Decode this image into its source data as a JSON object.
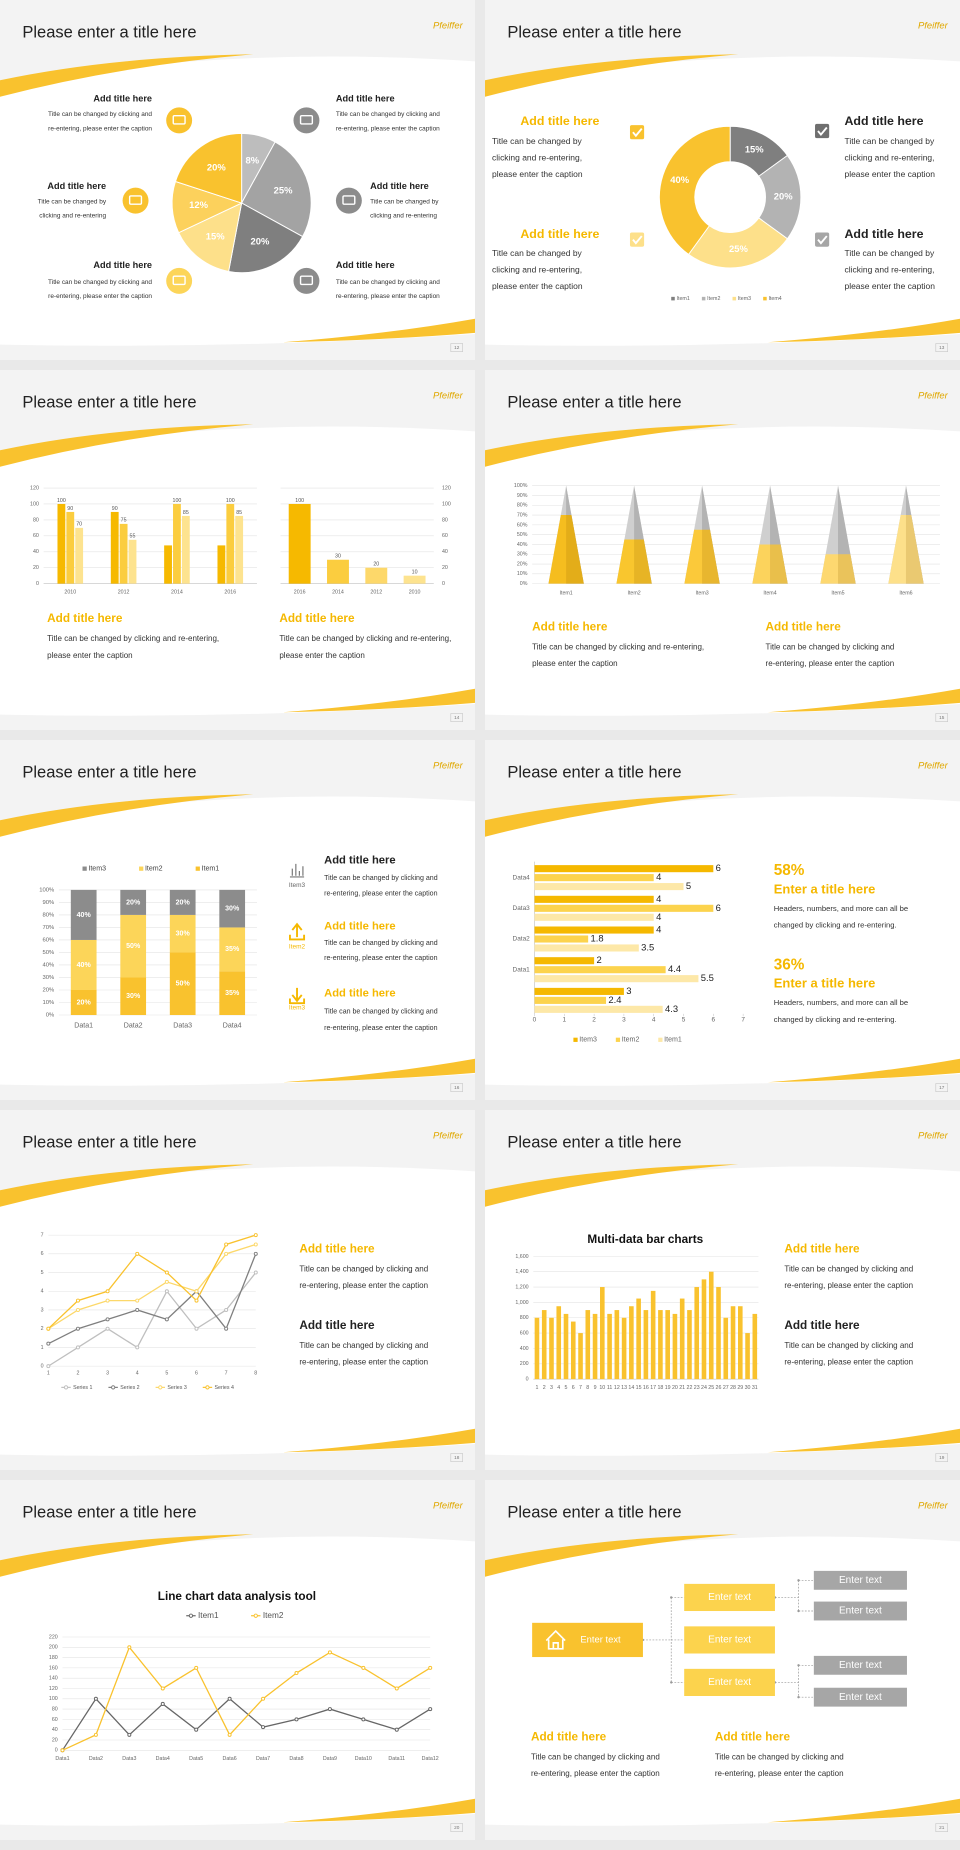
{
  "slides": [
    {
      "title": "Please enter a title here",
      "logo": "Pfeiffer",
      "page": 12,
      "blocks": [
        {
          "heading": "Add title here",
          "lines": [
            "Title can be changed by clicking and",
            "re-entering, please enter the caption"
          ]
        },
        {
          "heading": "Add title here",
          "lines": [
            "Title can be changed by clicking and",
            "re-entering, please enter the caption"
          ]
        },
        {
          "heading": "Add title here",
          "lines": [
            "Title can be changed by",
            "clicking and re-entering"
          ]
        },
        {
          "heading": "Add title here",
          "lines": [
            "Title can be changed by",
            "clicking and re-entering"
          ]
        },
        {
          "heading": "Add title here",
          "lines": [
            "Title can be changed by clicking and",
            "re-entering, please enter the caption"
          ]
        },
        {
          "heading": "Add title here",
          "lines": [
            "Title can be changed by clicking and",
            "re-entering, please enter the caption"
          ]
        }
      ],
      "chart_data": {
        "type": "pie",
        "values": [
          8,
          25,
          20,
          15,
          12,
          20
        ],
        "value_labels": [
          "8%",
          "25%",
          "20%",
          "15%",
          "12%",
          "20%"
        ],
        "colors": [
          "#bdbdbd",
          "#a3a3a3",
          "#7f7f7f",
          "#fde08a",
          "#fcd15c",
          "#f9c22e"
        ]
      }
    },
    {
      "title": "Please enter a title here",
      "logo": "Pfeiffer",
      "page": 13,
      "blocks": [
        {
          "heading": "Add title here",
          "lines": [
            "Title can be changed by",
            "clicking and re-entering,",
            "please enter the caption"
          ]
        },
        {
          "heading": "Add title here",
          "lines": [
            "Title can be changed by",
            "clicking and re-entering,",
            "please enter the caption"
          ]
        },
        {
          "heading": "Add title here",
          "lines": [
            "Title can be changed by",
            "clicking and re-entering,",
            "please enter the caption"
          ]
        },
        {
          "heading": "Add title here",
          "lines": [
            "Title can be changed by",
            "clicking and re-entering,",
            "please enter the caption"
          ]
        }
      ],
      "chart_data": {
        "type": "donut",
        "values": [
          15,
          20,
          25,
          40
        ],
        "value_labels": [
          "15%",
          "20%",
          "25%",
          "40%"
        ],
        "labels": [
          "Item1",
          "Item2",
          "Item3",
          "Item4"
        ],
        "colors": [
          "#7f7f7f",
          "#b3b3b3",
          "#fde08a",
          "#f9c22e"
        ]
      }
    },
    {
      "title": "Please enter a title here",
      "logo": "Pfeiffer",
      "page": 14,
      "blocks": [
        {
          "heading": "Add title here",
          "lines": [
            "Title can be changed by clicking and re-entering,",
            "please enter the caption"
          ]
        },
        {
          "heading": "Add title here",
          "lines": [
            "Title can be changed by clicking and re-entering,",
            "please enter the caption"
          ]
        }
      ],
      "chart_data": [
        {
          "type": "bar",
          "categories": [
            "2010",
            "2012",
            "2014",
            "2016"
          ],
          "ylim": [
            0,
            120
          ],
          "yticks": [
            0,
            20,
            40,
            60,
            80,
            100,
            120
          ],
          "series": [
            {
              "color": "#f6b900",
              "values": [
                100,
                90,
                48,
                48
              ],
              "value_labels": [
                "100",
                "90",
                null,
                null
              ]
            },
            {
              "color": "#fbcd3f",
              "values": [
                90,
                75,
                100,
                100
              ]
            },
            {
              "color": "#fde38f",
              "values": [
                70,
                55,
                85,
                85
              ]
            }
          ]
        },
        {
          "type": "bar",
          "categories": [
            "2016",
            "2014",
            "2012",
            "2010"
          ],
          "ylim": [
            0,
            120
          ],
          "yticks": [
            0,
            20,
            40,
            60,
            80,
            100,
            120
          ],
          "y_axis_side": "right",
          "series": [
            {
              "colors": [
                "#f6b900",
                "#fbcd3f",
                "#fdd86a",
                "#fde38f"
              ],
              "values": [
                100,
                30,
                20,
                10
              ]
            }
          ]
        }
      ]
    },
    {
      "title": "Please enter a title here",
      "logo": "Pfeiffer",
      "page": 15,
      "blocks": [
        {
          "heading": "Add title here",
          "lines": [
            "Title can be changed by clicking and re-entering,",
            "please enter the caption"
          ]
        },
        {
          "heading": "Add title here",
          "lines": [
            "Title can be changed by clicking and",
            "re-entering, please enter the caption"
          ]
        }
      ],
      "chart_data": {
        "type": "cone",
        "categories": [
          "Item1",
          "Item2",
          "Item3",
          "Item4",
          "Item5",
          "Item6"
        ],
        "values": [
          70,
          45,
          55,
          40,
          30,
          70
        ],
        "colors": [
          "#f5bd1f",
          "#f9c62e",
          "#fbc93a",
          "#fcd35c",
          "#fdd870",
          "#fde08a"
        ],
        "ylim": [
          0,
          100
        ],
        "yticks": [
          {
            "value": 0,
            "label": "0%"
          },
          {
            "value": 10,
            "label": "10%"
          },
          {
            "value": 20,
            "label": "20%"
          },
          {
            "value": 30,
            "label": "30%"
          },
          {
            "value": 40,
            "label": "40%"
          },
          {
            "value": 50,
            "label": "50%"
          },
          {
            "value": 60,
            "label": "60%"
          },
          {
            "value": 70,
            "label": "70%"
          },
          {
            "value": 80,
            "label": "80%"
          },
          {
            "value": 90,
            "label": "90%"
          },
          {
            "value": 100,
            "label": "100%"
          }
        ]
      }
    },
    {
      "title": "Please enter a title here",
      "logo": "Pfeiffer",
      "page": 16,
      "blocks": [
        {
          "heading": "Add title here",
          "lines": [
            "Title can be changed by clicking and",
            "re-entering, please enter the caption"
          ]
        },
        {
          "heading": "Add title here",
          "lines": [
            "Title can be changed by clicking and",
            "re-entering, please enter the caption"
          ]
        },
        {
          "heading": "Add title here",
          "lines": [
            "Title can be changed by clicking and",
            "re-entering, please enter the caption"
          ]
        }
      ],
      "icon_labels": [
        "Item3",
        "Item2",
        "Item3"
      ],
      "chart_data": {
        "type": "stacked_bar",
        "categories": [
          "Data1",
          "Data2",
          "Data3",
          "Data4"
        ],
        "ylim": [
          0,
          100
        ],
        "yticks": [
          {
            "value": 0,
            "label": "0%"
          },
          {
            "value": 10,
            "label": "10%"
          },
          {
            "value": 20,
            "label": "20%"
          },
          {
            "value": 30,
            "label": "30%"
          },
          {
            "value": 40,
            "label": "40%"
          },
          {
            "value": 50,
            "label": "50%"
          },
          {
            "value": 60,
            "label": "60%"
          },
          {
            "value": 70,
            "label": "70%"
          },
          {
            "value": 80,
            "label": "80%"
          },
          {
            "value": 90,
            "label": "90%"
          },
          {
            "value": 100,
            "label": "100%"
          }
        ],
        "series": [
          {
            "name": "Item1",
            "color": "#f9c22e",
            "values": [
              20,
              30,
              50,
              35
            ],
            "value_labels": [
              "20%",
              "30%",
              "50%",
              "35%"
            ]
          },
          {
            "name": "Item2",
            "color": "#fcd559",
            "values": [
              40,
              50,
              30,
              35
            ],
            "value_labels": [
              "40%",
              "50%",
              "30%",
              "35%"
            ]
          },
          {
            "name": "Item3",
            "color": "#8c8c8c",
            "values": [
              40,
              20,
              20,
              30
            ],
            "value_labels": [
              "40%",
              "20%",
              "20%",
              "30%"
            ]
          }
        ]
      }
    },
    {
      "title": "Please enter a title here",
      "logo": "Pfeiffer",
      "page": 17,
      "blocks": [
        {
          "figure": "58%",
          "heading": "Enter a title here",
          "lines": [
            "Headers, numbers, and more can all be",
            "changed by clicking and re-entering."
          ]
        },
        {
          "figure": "36%",
          "heading": "Enter a title here",
          "lines": [
            "Headers, numbers, and more can all be",
            "changed by clicking and re-entering."
          ]
        }
      ],
      "chart_data": {
        "type": "hbar",
        "categories": [
          "Data4",
          "Data3",
          "Data2",
          "Data1",
          null
        ],
        "xlim": [
          0,
          7
        ],
        "xticks": [
          0,
          1,
          2,
          3,
          4,
          5,
          6,
          7
        ],
        "series": [
          {
            "name": "Item3",
            "color": "#f5b800",
            "values": [
              6,
              4,
              4,
              2,
              3
            ]
          },
          {
            "name": "Item2",
            "color": "#fcd34d",
            "values": [
              4,
              6,
              1.8,
              4.4,
              2.4
            ]
          },
          {
            "name": "Item1",
            "color": "#fde8a8",
            "values": [
              5,
              4,
              3.5,
              5.5,
              4.3
            ]
          }
        ]
      }
    },
    {
      "title": "Please enter a title here",
      "logo": "Pfeiffer",
      "page": 18,
      "blocks": [
        {
          "heading": "Add title here",
          "lines": [
            "Title can be changed by clicking and",
            "re-entering, please enter the caption"
          ]
        },
        {
          "heading": "Add title here",
          "lines": [
            "Title can be changed by clicking and",
            "re-entering, please enter the caption"
          ]
        }
      ],
      "chart_data": {
        "type": "line",
        "x": [
          1,
          2,
          3,
          4,
          5,
          6,
          7,
          8
        ],
        "xlim": [
          1,
          8
        ],
        "xticks": [
          1,
          2,
          3,
          4,
          5,
          6,
          7,
          8
        ],
        "ylim": [
          0,
          7
        ],
        "yticks": [
          0,
          1,
          2,
          3,
          4,
          5,
          6,
          7
        ],
        "series": [
          {
            "name": "Series 1",
            "color": "#bfbfbf",
            "values": [
              0,
              1,
              2,
              1,
              4,
              2,
              3,
              5
            ]
          },
          {
            "name": "Series 2",
            "color": "#7f7f7f",
            "values": [
              1.2,
              2,
              2.5,
              3,
              2.5,
              4,
              2,
              6
            ]
          },
          {
            "name": "Series 3",
            "color": "#fcd86a",
            "values": [
              2,
              3,
              3.5,
              3.5,
              4.5,
              4,
              6,
              6.5
            ]
          },
          {
            "name": "Series 4",
            "color": "#f9c22e",
            "values": [
              2,
              3.5,
              4,
              6,
              5,
              3.5,
              6.5,
              7
            ]
          }
        ]
      }
    },
    {
      "title": "Please enter a title here",
      "logo": "Pfeiffer",
      "page": 19,
      "blocks": [
        {
          "heading": "Add title here",
          "lines": [
            "Title can be changed by clicking and",
            "re-entering, please enter the caption"
          ]
        },
        {
          "heading": "Add title here",
          "lines": [
            "Title can be changed by clicking and",
            "re-entering, please enter the caption"
          ]
        }
      ],
      "chart_data": {
        "type": "bar",
        "title": "Multi-data bar charts",
        "categories": [
          "1",
          "2",
          "3",
          "4",
          "5",
          "6",
          "7",
          "8",
          "9",
          "10",
          "11",
          "12",
          "13",
          "14",
          "15",
          "16",
          "17",
          "18",
          "19",
          "20",
          "21",
          "22",
          "23",
          "24",
          "25",
          "26",
          "27",
          "28",
          "29",
          "30",
          "31"
        ],
        "ylim": [
          0,
          1600
        ],
        "yticks": [
          0,
          200,
          400,
          600,
          800,
          {
            "value": 1000,
            "label": "1,000"
          },
          {
            "value": 1200,
            "label": "1,200"
          },
          {
            "value": 1400,
            "label": "1,400"
          },
          {
            "value": 1600,
            "label": "1,600"
          }
        ],
        "series": [
          {
            "color": "#f9c22e",
            "values": [
              800,
              900,
              800,
              950,
              850,
              750,
              600,
              900,
              850,
              1200,
              850,
              900,
              800,
              950,
              1050,
              900,
              1150,
              900,
              900,
              850,
              1050,
              900,
              1200,
              1300,
              1400,
              1200,
              800,
              950,
              950,
              600,
              850
            ]
          }
        ]
      }
    },
    {
      "title": "Please enter a title here",
      "logo": "Pfeiffer",
      "page": 20,
      "chart_data": {
        "type": "line",
        "title": "Line chart data analysis tool",
        "categories": [
          "Data1",
          "Data2",
          "Data3",
          "Data4",
          "Data5",
          "Data6",
          "Data7",
          "Data8",
          "Data9",
          "Data10",
          "Data11",
          "Data12"
        ],
        "ylim": [
          0,
          220
        ],
        "yticks": [
          0,
          20,
          40,
          60,
          80,
          100,
          120,
          140,
          160,
          180,
          200,
          220
        ],
        "series": [
          {
            "name": "Item1",
            "color": "#666666",
            "values": [
              0,
              100,
              30,
              90,
              40,
              100,
              45,
              60,
              80,
              60,
              40,
              80
            ]
          },
          {
            "name": "Item2",
            "color": "#f9c22e",
            "values": [
              0,
              30,
              200,
              120,
              160,
              30,
              100,
              150,
              190,
              160,
              120,
              160
            ]
          }
        ]
      }
    },
    {
      "title": "Please enter a title here",
      "logo": "Pfeiffer",
      "page": 21,
      "blocks": [
        {
          "heading": "Add title here",
          "lines": [
            "Title can be changed by clicking and",
            "re-entering, please enter the caption"
          ]
        },
        {
          "heading": "Add title here",
          "lines": [
            "Title can be changed by clicking and",
            "re-entering, please enter the caption"
          ]
        }
      ],
      "nodes": [
        "Enter text",
        "Enter text",
        "Enter text",
        "Enter text",
        "Enter text",
        "Enter text",
        "Enter text",
        "Enter text"
      ]
    }
  ]
}
